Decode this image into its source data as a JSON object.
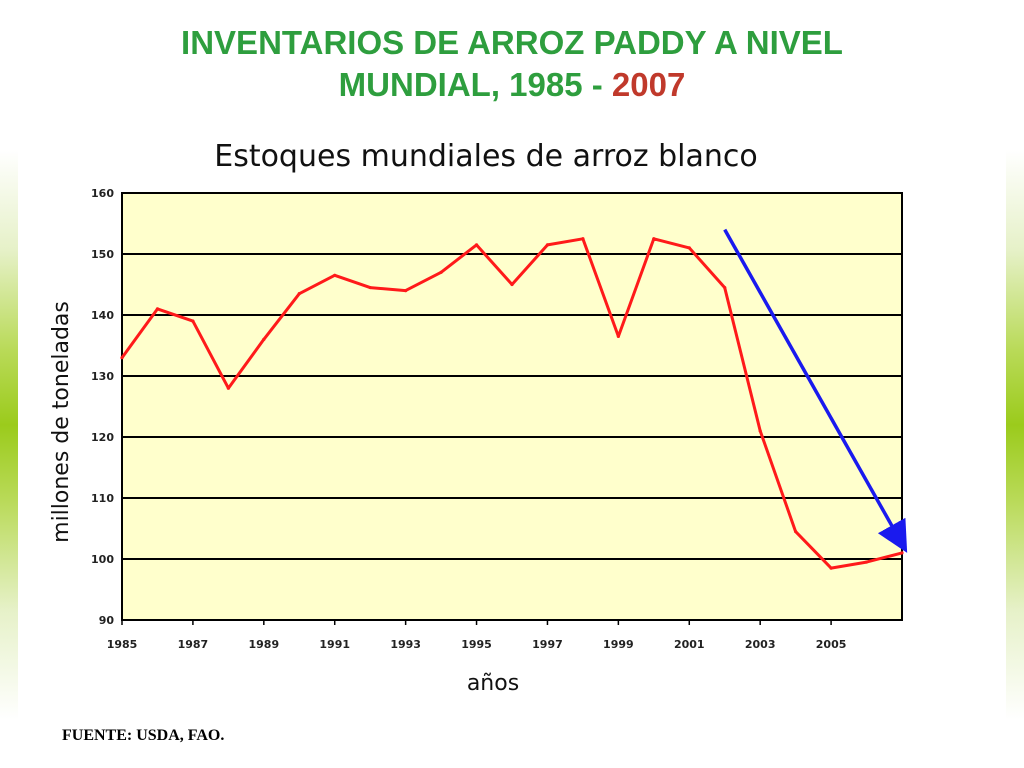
{
  "slide": {
    "title_line1": "INVENTARIOS DE ARROZ PADDY A NIVEL",
    "title_line2_prefix": "MUNDIAL, 1985 - ",
    "title_line2_year": "2007",
    "source": "FUENTE: USDA, FAO."
  },
  "colors": {
    "title": "#2e9e3e",
    "title_year": "#c0392b",
    "plot_background": "#ffffcc",
    "series_line": "#ff1a1a",
    "trend_arrow": "#1a1aee",
    "gridline": "#000000"
  },
  "chart_data": {
    "type": "line",
    "title": "Estoques mundiales de arroz blanco",
    "xlabel": "años",
    "ylabel": "millones de toneladas",
    "xlim": [
      1985,
      2007
    ],
    "ylim": [
      90,
      160
    ],
    "grid": true,
    "yticks": [
      90,
      100,
      110,
      120,
      130,
      140,
      150,
      160
    ],
    "xticks": [
      1985,
      1987,
      1989,
      1991,
      1993,
      1995,
      1997,
      1999,
      2001,
      2003,
      2005
    ],
    "x": [
      1985,
      1986,
      1987,
      1988,
      1989,
      1990,
      1991,
      1992,
      1993,
      1994,
      1995,
      1996,
      1997,
      1998,
      1999,
      2000,
      2001,
      2002,
      2003,
      2004,
      2005,
      2006,
      2007
    ],
    "values": [
      133,
      141,
      139,
      128,
      136,
      143.5,
      146.5,
      144.5,
      144,
      147,
      151.5,
      145,
      151.5,
      152.5,
      136.5,
      152.5,
      151,
      144.5,
      121,
      104.5,
      98.5,
      99.5,
      101
    ],
    "annotations": [
      {
        "type": "arrow",
        "from": [
          2002,
          154
        ],
        "to": [
          2007,
          102.5
        ]
      }
    ]
  }
}
